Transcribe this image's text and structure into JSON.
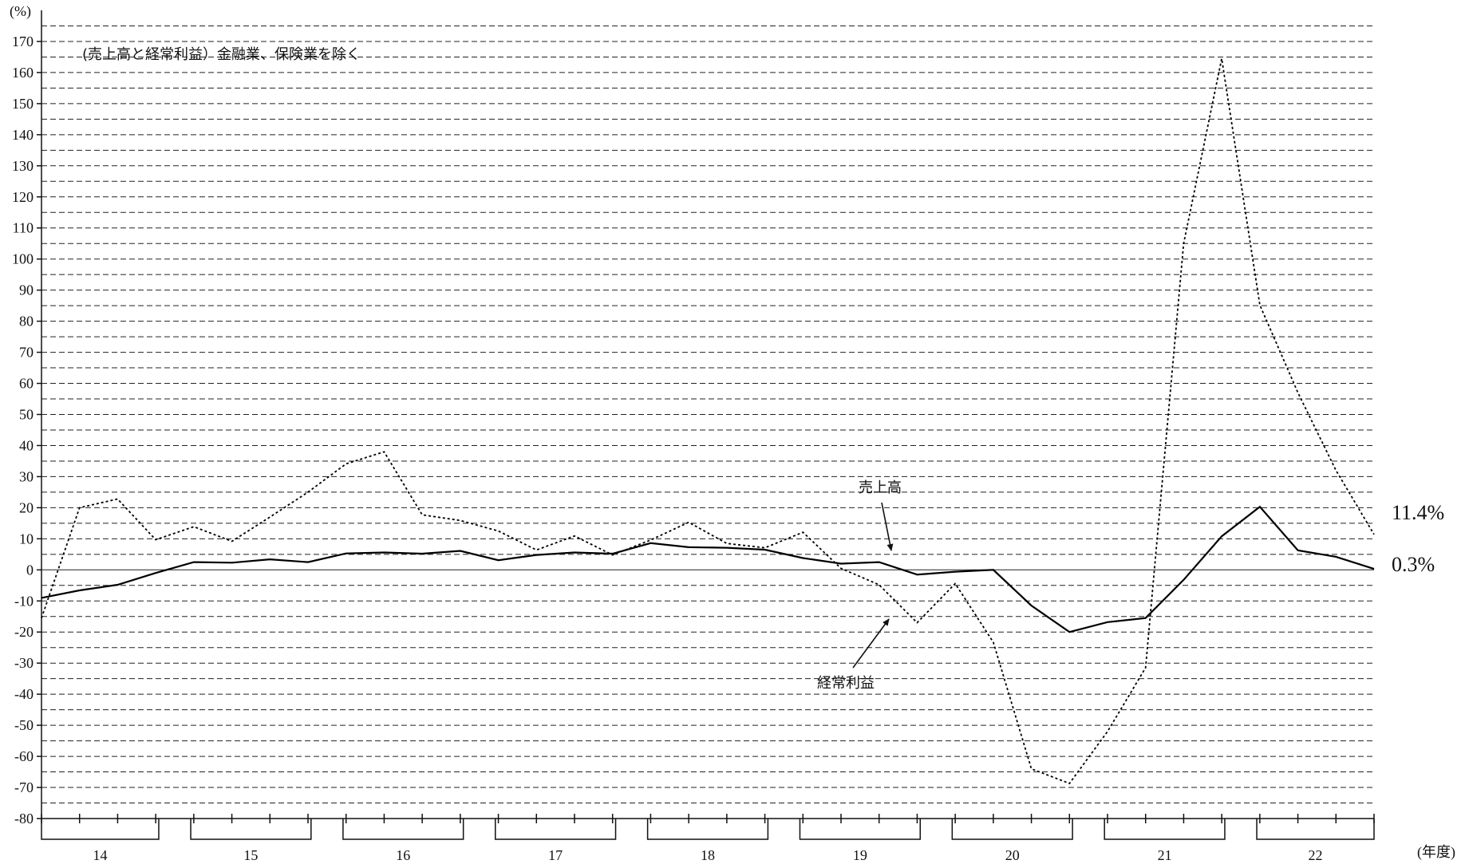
{
  "chart_data": {
    "type": "line",
    "y_unit_label": "(%)",
    "x_unit_label": "(年度)",
    "note": "(売上高と経常利益）金融業、保険業を除く",
    "ylim": [
      -80,
      180
    ],
    "yticks": [
      -80,
      -70,
      -60,
      -50,
      -40,
      -30,
      -20,
      -10,
      0,
      10,
      20,
      30,
      40,
      50,
      60,
      70,
      80,
      90,
      100,
      110,
      120,
      130,
      140,
      150,
      160,
      170
    ],
    "grid": "dashed horizontal, every 5",
    "fiscal_years": [
      "14",
      "15",
      "16",
      "17",
      "18",
      "19",
      "20",
      "21",
      "22"
    ],
    "quarters_per_year": 4,
    "series": [
      {
        "name": "売上高",
        "style": "solid",
        "values": [
          -9.0,
          -6.6,
          -4.8,
          -1.0,
          2.5,
          2.3,
          3.4,
          2.5,
          5.3,
          5.6,
          5.2,
          6.1,
          3.1,
          4.8,
          5.6,
          5.2,
          8.6,
          7.3,
          7.1,
          6.5,
          3.8,
          2.0,
          2.5,
          -1.5,
          -0.6,
          0.0,
          -11.5,
          -20.0,
          -16.8,
          -15.5,
          -3.2,
          10.8,
          20.3,
          6.3,
          4.2,
          0.3
        ],
        "pointer_label": "売上高",
        "end_label": "0.3%"
      },
      {
        "name": "経常利益",
        "style": "dotted",
        "values": [
          -15.5,
          20.0,
          22.8,
          9.7,
          13.9,
          9.2,
          17.0,
          25.0,
          34.1,
          38.0,
          17.7,
          15.9,
          12.5,
          6.4,
          10.9,
          4.8,
          9.6,
          15.3,
          8.5,
          7.1,
          12.1,
          0.5,
          -4.8,
          -17.0,
          -4.4,
          -23.3,
          -64.0,
          -68.7,
          -52.0,
          -31.5,
          105.0,
          164.5,
          85.2,
          57.0,
          32.0,
          11.4
        ],
        "pointer_label": "経常利益",
        "end_label": "11.4%"
      }
    ]
  }
}
